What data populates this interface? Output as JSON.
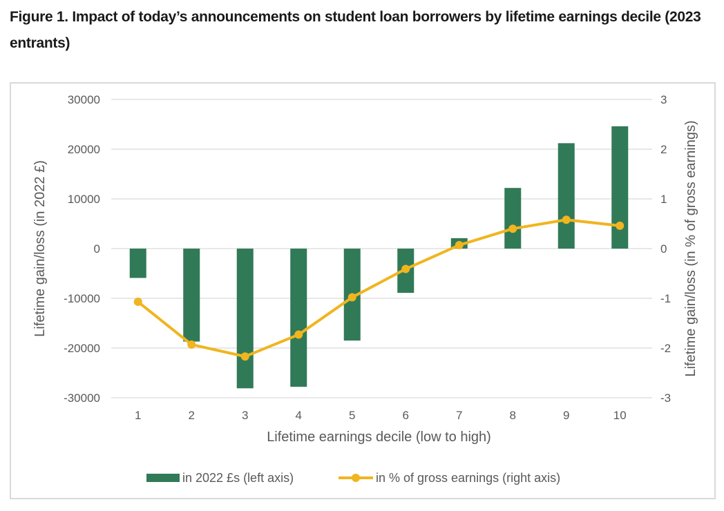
{
  "figure": {
    "title": "Figure 1. Impact of today’s announcements on student loan borrowers by lifetime earnings decile (2023 entrants)"
  },
  "chart_data": {
    "type": "bar",
    "categories": [
      "1",
      "2",
      "3",
      "4",
      "5",
      "6",
      "7",
      "8",
      "9",
      "10"
    ],
    "xlabel": "Lifetime earnings decile (low to high)",
    "ylabel": "Lifetime gain/loss (in 2022 £)",
    "y2label": "Lifetime gain/loss (in % of gross earnings)",
    "ylim": [
      -30000,
      30000
    ],
    "y2lim": [
      -3,
      3
    ],
    "yticks": [
      30000,
      20000,
      10000,
      0,
      -10000,
      -20000,
      -30000
    ],
    "y2ticks": [
      3,
      2,
      1,
      0,
      -1,
      -2,
      -3
    ],
    "grid": true,
    "legend_position": "bottom",
    "series": [
      {
        "name": "in 2022 £s (left axis)",
        "type": "bar",
        "axis": "left",
        "color": "#317a57",
        "values": [
          -5900,
          -18700,
          -28100,
          -27800,
          -18500,
          -8900,
          2100,
          12200,
          21200,
          24600
        ]
      },
      {
        "name": "in % of gross earnings (right axis)",
        "type": "line",
        "axis": "right",
        "color": "#f0b51f",
        "values": [
          -1.07,
          -1.93,
          -2.17,
          -1.73,
          -0.98,
          -0.41,
          0.07,
          0.4,
          0.58,
          0.46
        ]
      }
    ]
  }
}
